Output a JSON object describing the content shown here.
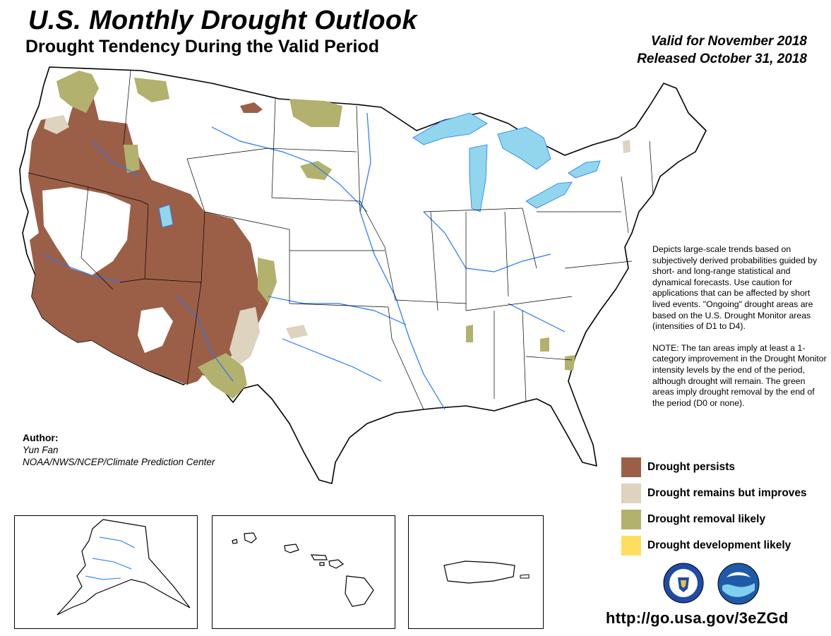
{
  "title": "U.S. Monthly Drought Outlook",
  "subtitle": "Drought Tendency During the Valid Period",
  "valid_line": "Valid for November 2018",
  "released_line": "Released October 31, 2018",
  "description": "Depicts large-scale trends based on subjectively derived probabilities guided by short- and long-range statistical and dynamical forecasts. Use caution for applications that can be affected by short lived events. \"Ongoing\" drought areas are based on the U.S. Drought Monitor areas (intensities of D1 to D4).",
  "note": "NOTE: The tan areas imply at least a 1-category improvement in the Drought Monitor intensity levels by the end of the period, although drought will remain. The green areas imply drought removal by the end of the period (D0 or none).",
  "author": {
    "label": "Author:",
    "name": "Yun Fan",
    "org": "NOAA/NWS/NCEP/Climate Prediction Center"
  },
  "legend": [
    {
      "label": "Drought persists",
      "color": "#9b5f47"
    },
    {
      "label": "Drought remains but improves",
      "color": "#ddd3bf"
    },
    {
      "label": "Drought removal likely",
      "color": "#b2b16d"
    },
    {
      "label": "Drought development likely",
      "color": "#ffdd5f"
    }
  ],
  "colors": {
    "water": "#91d6ec",
    "rivers": "#1f77ff",
    "state_lines": "#000000"
  },
  "insets": [
    "Alaska",
    "Hawaii",
    "Puerto Rico"
  ],
  "logos": [
    "doc-seal-icon",
    "noaa-logo-icon"
  ],
  "url": "http://go.usa.gov/3eZGd"
}
